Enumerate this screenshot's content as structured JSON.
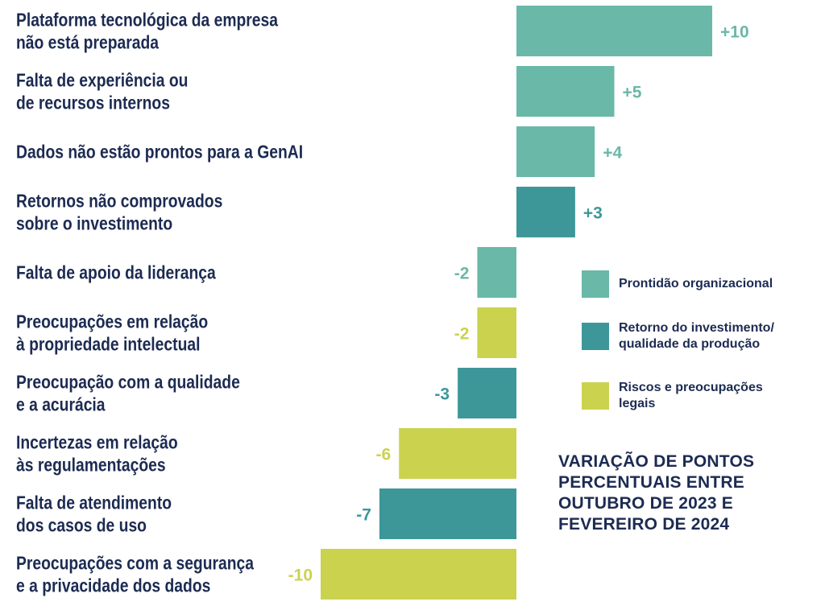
{
  "colors": {
    "text": "#1c2b52",
    "org": "#6ab8a8",
    "roi": "#3d9799",
    "risk": "#cbd24e"
  },
  "legend": [
    {
      "key": "org",
      "label": "Prontidão organizacional"
    },
    {
      "key": "roi",
      "label": "Retorno do investimento/ qualidade da produção"
    },
    {
      "key": "risk",
      "label": "Riscos e preocupações legais"
    }
  ],
  "note": "VARIAÇÃO DE PONTOS PERCENTUAIS ENTRE OUTUBRO DE 2023 E FEVEREIRO DE 2024",
  "chart_data": {
    "type": "bar",
    "orientation": "horizontal",
    "title": "",
    "xlabel": "",
    "ylabel": "",
    "grid": false,
    "legend_position": "right",
    "categories": [
      [
        "Plataforma tecnológica da empresa",
        "não está preparada"
      ],
      [
        "Falta de experiência ou",
        "de recursos internos"
      ],
      [
        "Dados não estão prontos para a GenAI"
      ],
      [
        "Retornos não comprovados",
        "sobre o investimento"
      ],
      [
        "Falta de apoio da liderança"
      ],
      [
        "Preocupações em relação",
        "à propriedade intelectual"
      ],
      [
        "Preocupação com a qualidade",
        "e a acurácia"
      ],
      [
        "Incertezas em relação",
        "às regulamentações"
      ],
      [
        "Falta de atendimento",
        "dos casos de uso"
      ],
      [
        "Preocupações com a segurança",
        "e a privacidade dos dados"
      ]
    ],
    "values": [
      10,
      5,
      4,
      3,
      -2,
      -2,
      -3,
      -6,
      -7,
      -10
    ],
    "value_labels": [
      "+10",
      "+5",
      "+4",
      "+3",
      "-2",
      "-2",
      "-3",
      "-6",
      "-7",
      "-10"
    ],
    "groups": [
      "org",
      "org",
      "org",
      "roi",
      "org",
      "risk",
      "roi",
      "risk",
      "roi",
      "risk"
    ],
    "xlim": [
      -10,
      10
    ]
  }
}
